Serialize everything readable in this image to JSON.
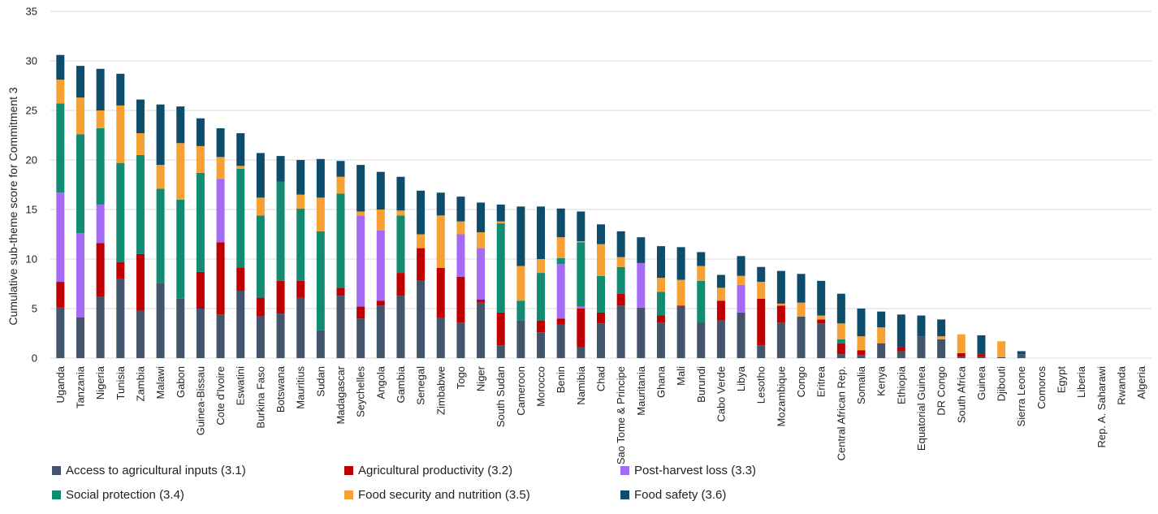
{
  "chart_data": {
    "type": "bar",
    "stacked": true,
    "title": "",
    "xlabel": "",
    "ylabel": "Cumulative sub-theme  score for Commitment 3",
    "ylim": [
      0,
      35
    ],
    "yticks": [
      0,
      5,
      10,
      15,
      20,
      25,
      30,
      35
    ],
    "grid": true,
    "legend_position": "bottom",
    "categories": [
      "Uganda",
      "Tanzania",
      "Nigeria",
      "Tunisia",
      "Zambia",
      "Malawi",
      "Gabon",
      "Guinea-Bissau",
      "Cote d'Ivoire",
      "Eswatini",
      "Burkina Faso",
      "Botswana",
      "Mauritius",
      "Sudan",
      "Madagascar",
      "Seychelles",
      "Angola",
      "Gambia",
      "Senegal",
      "Zimbabwe",
      "Togo",
      "Niger",
      "South Sudan",
      "Cameroon",
      "Morocco",
      "Benin",
      "Namibia",
      "Chad",
      "Sao Tome & Principe",
      "Mauritania",
      "Ghana",
      "Mali",
      "Burundi",
      "Cabo Verde",
      "Libya",
      "Lesotho",
      "Mozambique",
      "Congo",
      "Eritrea",
      "Central African Rep.",
      "Somalia",
      "Kenya",
      "Ethiopia",
      "Equatorial Guinea",
      "DR Congo",
      "South Africa",
      "Guinea",
      "Djibouti",
      "Sierra Leone",
      "Comoros",
      "Egypt",
      "Liberia",
      "Rep. A. Saharawi",
      "Rwanda",
      "Algeria"
    ],
    "series": [
      {
        "name": "Access to agricultural inputs (3.1)",
        "color": "#44546a",
        "values": [
          5.1,
          4.1,
          6.2,
          8.0,
          4.8,
          7.6,
          6.0,
          5.0,
          4.4,
          6.8,
          4.2,
          4.5,
          6.1,
          2.8,
          6.3,
          4.0,
          5.3,
          6.3,
          7.8,
          4.1,
          3.6,
          5.6,
          1.3,
          3.8,
          2.6,
          3.4,
          1.1,
          3.5,
          5.3,
          5.1,
          3.6,
          5.2,
          3.6,
          3.8,
          4.6,
          1.3,
          3.6,
          4.2,
          3.5,
          0.4,
          0.3,
          1.5,
          0.7,
          2.2,
          1.9,
          0.1,
          0.1,
          0.1,
          0.4,
          0,
          0,
          0,
          0,
          0,
          0
        ]
      },
      {
        "name": "Agricultural productivity (3.2)",
        "color": "#c00000",
        "values": [
          2.6,
          0,
          5.4,
          1.7,
          5.7,
          0,
          0,
          3.7,
          7.3,
          2.3,
          1.9,
          3.3,
          1.7,
          0,
          0.8,
          1.2,
          0.5,
          2.3,
          3.3,
          5.0,
          4.6,
          0.3,
          3.3,
          0,
          1.2,
          0.6,
          3.9,
          1.1,
          1.2,
          0,
          0.7,
          0.1,
          0,
          2.0,
          0,
          4.7,
          1.7,
          0,
          0.4,
          1.1,
          0.5,
          0,
          0.4,
          0,
          0,
          0.4,
          0.3,
          0,
          0,
          0,
          0,
          0,
          0,
          0,
          0
        ]
      },
      {
        "name": "Post-harvest loss (3.3)",
        "color": "#a66bf5",
        "values": [
          9.0,
          8.5,
          3.9,
          0,
          0,
          0,
          0,
          0,
          6.4,
          0,
          0,
          0,
          0,
          0,
          0,
          9.2,
          7.1,
          0,
          0,
          0,
          4.3,
          5.2,
          0,
          0,
          0,
          5.5,
          0.2,
          0,
          0,
          4.5,
          0,
          0,
          0,
          0,
          2.8,
          0,
          0,
          0,
          0,
          0,
          0,
          0,
          0,
          0,
          0,
          0,
          0,
          0,
          0,
          0,
          0,
          0,
          0,
          0,
          0
        ]
      },
      {
        "name": "Social protection (3.4)",
        "color": "#138a72",
        "values": [
          9.0,
          10.0,
          7.7,
          10.0,
          10.0,
          9.5,
          10.0,
          10.0,
          0,
          10.0,
          8.3,
          10.0,
          7.3,
          10.0,
          9.5,
          0,
          0,
          5.8,
          0,
          0,
          0,
          0,
          9.0,
          2.0,
          4.8,
          0.6,
          6.5,
          3.7,
          2.7,
          0,
          2.4,
          0,
          4.2,
          0,
          0,
          0,
          0,
          0,
          0,
          0.4,
          0,
          0,
          0,
          0,
          0,
          0,
          0,
          0,
          0,
          0,
          0,
          0,
          0,
          0,
          0
        ]
      },
      {
        "name": "Food security and nutrition (3.5)",
        "color": "#f7a134",
        "values": [
          2.4,
          3.7,
          1.8,
          5.8,
          2.2,
          2.4,
          5.7,
          2.7,
          2.2,
          0.3,
          1.8,
          0,
          1.4,
          3.4,
          1.7,
          0.4,
          2.1,
          0.5,
          1.4,
          5.3,
          1.3,
          1.6,
          0.2,
          3.5,
          1.4,
          2.1,
          0.1,
          3.2,
          1.0,
          0,
          1.4,
          2.6,
          1.5,
          1.3,
          0.9,
          1.7,
          0.2,
          1.4,
          0.4,
          1.6,
          1.4,
          1.6,
          0,
          0,
          0.3,
          1.9,
          0,
          1.6,
          0,
          0,
          0,
          0,
          0,
          0,
          0
        ]
      },
      {
        "name": "Food safety (3.6)",
        "color": "#0d4c6b",
        "values": [
          2.5,
          3.2,
          4.2,
          3.2,
          3.4,
          6.1,
          3.7,
          2.8,
          2.9,
          3.3,
          4.5,
          2.6,
          3.5,
          3.9,
          1.6,
          4.7,
          3.8,
          3.4,
          4.4,
          2.3,
          2.5,
          3.0,
          1.7,
          6.0,
          5.3,
          2.9,
          3.0,
          2.0,
          2.6,
          2.6,
          3.2,
          3.3,
          1.4,
          1.3,
          2.0,
          1.5,
          3.3,
          2.9,
          3.5,
          3.0,
          2.8,
          1.6,
          3.3,
          2.1,
          1.7,
          0,
          1.9,
          0,
          0.3,
          0,
          0,
          0,
          0,
          0,
          0
        ]
      }
    ]
  }
}
